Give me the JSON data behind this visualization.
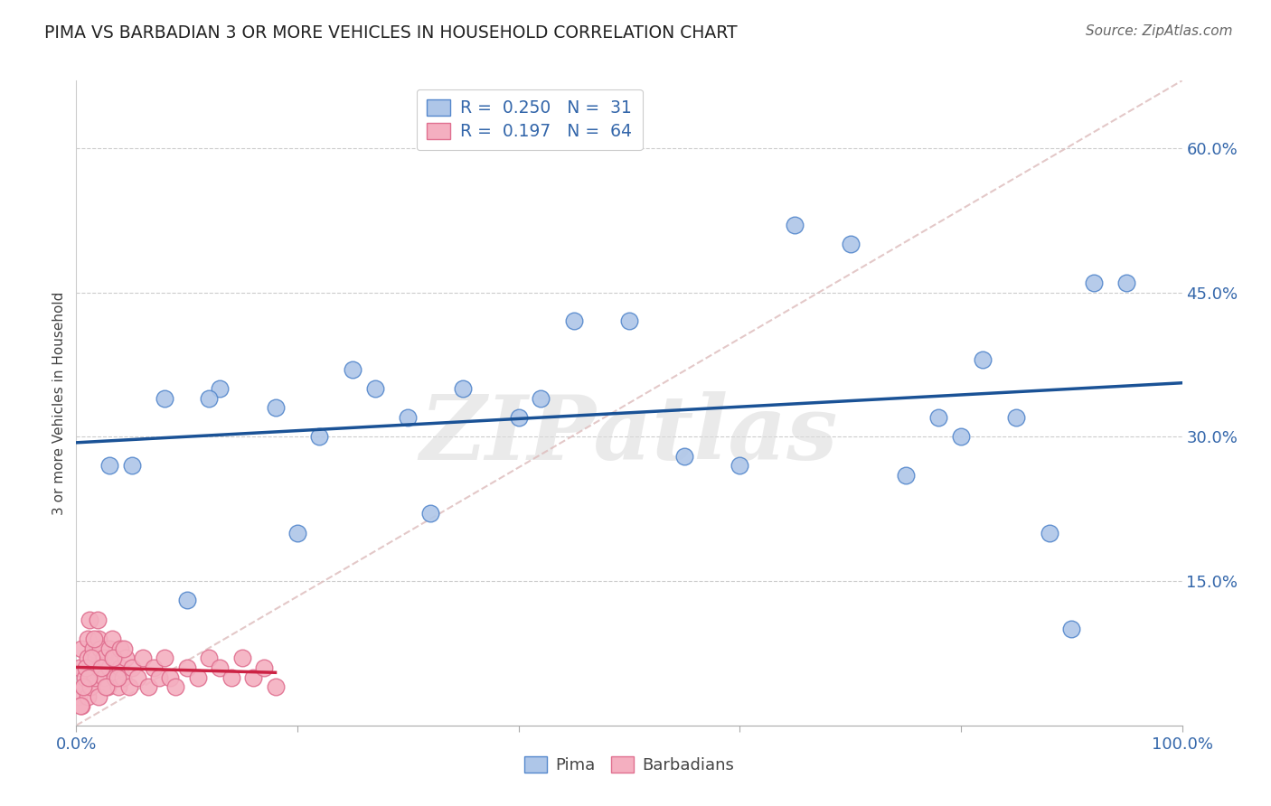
{
  "title": "PIMA VS BARBADIAN 3 OR MORE VEHICLES IN HOUSEHOLD CORRELATION CHART",
  "source": "Source: ZipAtlas.com",
  "ylabel": "3 or more Vehicles in Household",
  "xlim": [
    0,
    100
  ],
  "ylim": [
    0,
    67
  ],
  "ytick_values": [
    15,
    30,
    45,
    60
  ],
  "ytick_labels": [
    "15.0%",
    "30.0%",
    "45.0%",
    "60.0%"
  ],
  "xtick_values": [
    0,
    100
  ],
  "xtick_labels": [
    "0.0%",
    "100.0%"
  ],
  "legend_pima_R": "0.250",
  "legend_pima_N": "31",
  "legend_barb_R": "0.197",
  "legend_barb_N": "64",
  "pima_color": "#aec6e8",
  "barb_color": "#f4afc0",
  "pima_edge": "#5588cc",
  "barb_edge": "#e07090",
  "trend_pima_color": "#1a5296",
  "trend_barb_color": "#cc2244",
  "watermark": "ZIPatlas",
  "pima_x": [
    3,
    8,
    10,
    13,
    18,
    22,
    27,
    30,
    35,
    40,
    45,
    50,
    55,
    65,
    70,
    75,
    78,
    80,
    85,
    88,
    90,
    92,
    95,
    5,
    12,
    20,
    25,
    32,
    42,
    60,
    82
  ],
  "pima_y": [
    27,
    34,
    13,
    35,
    33,
    30,
    35,
    32,
    35,
    32,
    42,
    42,
    28,
    52,
    50,
    26,
    32,
    30,
    32,
    20,
    10,
    46,
    46,
    27,
    34,
    20,
    37,
    22,
    34,
    27,
    38
  ],
  "barb_x": [
    0.2,
    0.3,
    0.5,
    0.5,
    0.7,
    0.8,
    1.0,
    1.0,
    1.0,
    1.2,
    1.2,
    1.3,
    1.5,
    1.5,
    1.7,
    1.8,
    2.0,
    2.0,
    2.0,
    2.2,
    2.5,
    2.5,
    2.8,
    3.0,
    3.0,
    3.2,
    3.5,
    3.5,
    3.8,
    4.0,
    4.0,
    4.2,
    4.5,
    4.8,
    5.0,
    5.5,
    6.0,
    6.5,
    7.0,
    7.5,
    8.0,
    8.5,
    9.0,
    10.0,
    11.0,
    12.0,
    13.0,
    14.0,
    15.0,
    16.0,
    17.0,
    18.0,
    0.4,
    0.6,
    0.9,
    1.1,
    1.4,
    1.6,
    1.9,
    2.3,
    2.7,
    3.3,
    3.7,
    4.3
  ],
  "barb_y": [
    3,
    6,
    2,
    8,
    4,
    5,
    7,
    3,
    9,
    5,
    11,
    4,
    6,
    8,
    5,
    7,
    3,
    9,
    6,
    8,
    5,
    7,
    4,
    8,
    6,
    9,
    5,
    7,
    4,
    6,
    8,
    5,
    7,
    4,
    6,
    5,
    7,
    4,
    6,
    5,
    7,
    5,
    4,
    6,
    5,
    7,
    6,
    5,
    7,
    5,
    6,
    4,
    2,
    4,
    6,
    5,
    7,
    9,
    11,
    6,
    4,
    7,
    5,
    8
  ],
  "diag_color": "#ddbbbb",
  "grid_color": "#cccccc"
}
